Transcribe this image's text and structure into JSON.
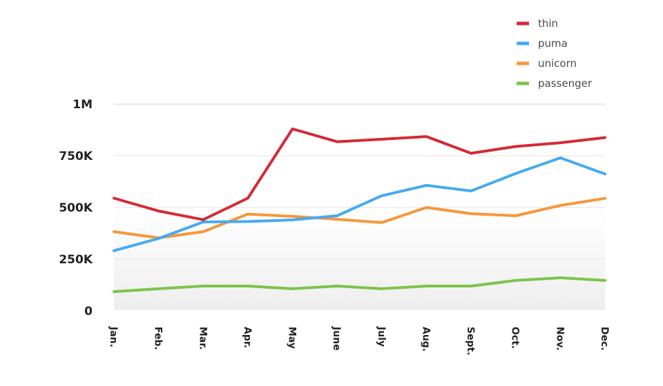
{
  "chart_data": {
    "type": "line",
    "title": "",
    "xlabel": "",
    "ylabel": "",
    "categories": [
      "Jan.",
      "Feb.",
      "Mar.",
      "Apr.",
      "May",
      "June",
      "July",
      "Aug.",
      "Sept.",
      "Oct.",
      "Nov.",
      "Dec."
    ],
    "ylim": [
      0,
      1000000
    ],
    "yticks": [
      {
        "value": 0,
        "label": "0"
      },
      {
        "value": 250000,
        "label": "250K"
      },
      {
        "value": 500000,
        "label": "500K"
      },
      {
        "value": 750000,
        "label": "750K"
      },
      {
        "value": 1000000,
        "label": "1M"
      }
    ],
    "grid": true,
    "legend_position": "top-right",
    "series": [
      {
        "name": "thin",
        "color": "#d42a36",
        "values": [
          545000,
          483000,
          441000,
          545000,
          880000,
          818000,
          830000,
          843000,
          762000,
          795000,
          813000,
          838000
        ]
      },
      {
        "name": "puma",
        "color": "#45aaf0",
        "values": [
          291000,
          350000,
          430000,
          432000,
          440000,
          460000,
          557000,
          607000,
          580000,
          664000,
          740000,
          662000
        ]
      },
      {
        "name": "unicorn",
        "color": "#f89638",
        "values": [
          383000,
          353000,
          383000,
          468000,
          457000,
          443000,
          427000,
          500000,
          470000,
          460000,
          510000,
          544000
        ]
      },
      {
        "name": "passenger",
        "color": "#7dc34a",
        "values": [
          93000,
          107000,
          120000,
          120000,
          107000,
          120000,
          107000,
          120000,
          120000,
          147000,
          160000,
          147000
        ]
      }
    ]
  }
}
